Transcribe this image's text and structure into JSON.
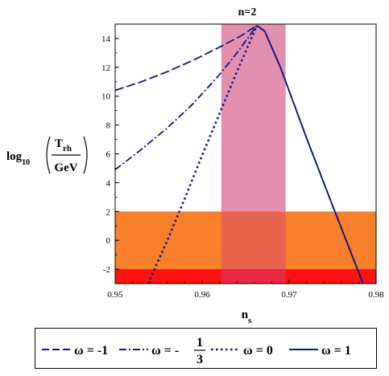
{
  "chart_data": {
    "type": "line",
    "title": "n=2",
    "xlabel": "n",
    "xlabel_sub": "s",
    "ylabel": {
      "prefix": "log",
      "prefix_sub": "10",
      "numerator": "T",
      "numerator_sub": "rh",
      "denominator": "GeV"
    },
    "xlim": [
      0.95,
      0.98
    ],
    "ylim": [
      -3,
      15
    ],
    "xticks": [
      0.95,
      0.96,
      0.97,
      0.98
    ],
    "xtick_labels": [
      "0.95",
      "0.96",
      "0.97",
      "0.98"
    ],
    "yticks": [
      -2,
      0,
      2,
      4,
      6,
      8,
      10,
      12,
      14
    ],
    "ytick_labels": [
      "-2",
      "0",
      "2",
      "4",
      "6",
      "8",
      "10",
      "12",
      "14"
    ],
    "grid": false,
    "legend_position": "bottom",
    "bands": [
      {
        "name": "ns-band",
        "orientation": "vertical",
        "from": 0.9622,
        "to": 0.9696,
        "color": "#d24a7e",
        "opacity": 0.62
      },
      {
        "name": "bbn-orange",
        "orientation": "horizontal",
        "from": -3,
        "to": 2,
        "color": "#f87820",
        "opacity": 0.95
      },
      {
        "name": "bbn-red",
        "orientation": "horizontal",
        "from": -3,
        "to": -2,
        "color": "#fe0c10",
        "opacity": 0.95
      }
    ],
    "series": [
      {
        "name": "ω = -1",
        "color": "#0a1680",
        "style": "dash",
        "x": [
          0.95,
          0.953,
          0.956,
          0.959,
          0.962,
          0.9645,
          0.9663,
          0.9672,
          0.969,
          0.972,
          0.975,
          0.9785
        ],
        "y": [
          10.4,
          11.0,
          11.7,
          12.5,
          13.4,
          14.2,
          14.9,
          14.5,
          12.0,
          7.1,
          2.4,
          -3.0
        ]
      },
      {
        "name": "ω = -1/3",
        "color": "#0a1680",
        "style": "dashdot",
        "x": [
          0.95,
          0.953,
          0.956,
          0.959,
          0.962,
          0.964,
          0.9663
        ],
        "y": [
          4.9,
          6.3,
          7.8,
          9.5,
          11.5,
          13.0,
          14.9
        ]
      },
      {
        "name": "ω = 0",
        "color": "#0a1680",
        "style": "dot",
        "x": [
          0.9538,
          0.956,
          0.958,
          0.96,
          0.962,
          0.964,
          0.9663
        ],
        "y": [
          -3.0,
          0.0,
          2.9,
          5.9,
          8.8,
          11.7,
          14.9
        ]
      },
      {
        "name": "ω = 1",
        "color": "#0a1680",
        "style": "solid",
        "x": [
          0.9663,
          0.9672,
          0.969,
          0.972,
          0.975,
          0.9785
        ],
        "y": [
          14.9,
          14.5,
          12.0,
          7.1,
          2.4,
          -3.0
        ]
      }
    ]
  },
  "legend": {
    "items": [
      {
        "label": "ω = -1",
        "style": "dash"
      },
      {
        "label_prefix": "ω = -",
        "frac_num": "1",
        "frac_den": "3",
        "style": "dashdot"
      },
      {
        "label": "ω = 0",
        "style": "dot"
      },
      {
        "label": "ω = 1",
        "style": "solid"
      }
    ]
  }
}
